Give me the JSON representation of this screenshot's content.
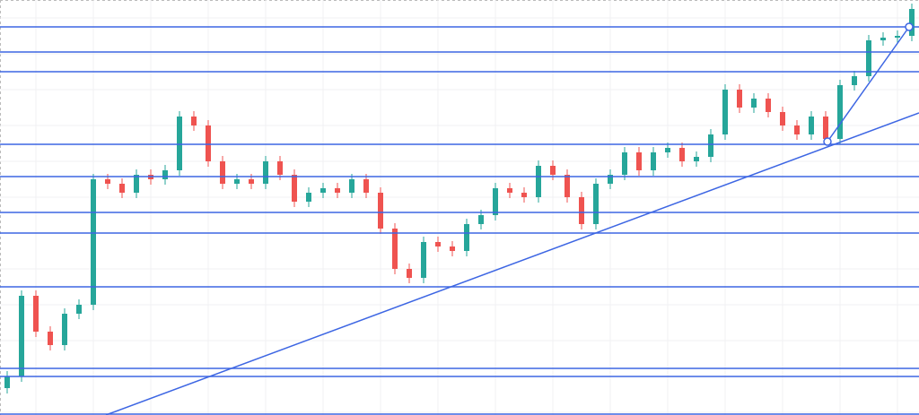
{
  "chart_data": {
    "type": "candlestick",
    "grid": true,
    "xlim": [
      -0.5,
      63.5
    ],
    "ylim": [
      0,
      463
    ],
    "up_color": "#26a69a",
    "down_color": "#ef5350",
    "line_color": "#3d66e3",
    "open": [
      30,
      43,
      133,
      93,
      78,
      113,
      123,
      263,
      258,
      248,
      268,
      263,
      273,
      333,
      323,
      283,
      258,
      263,
      258,
      283,
      268,
      238,
      248,
      253,
      248,
      263,
      248,
      208,
      163,
      153,
      193,
      188,
      183,
      213,
      223,
      253,
      248,
      243,
      278,
      268,
      243,
      213,
      258,
      268,
      293,
      273,
      293,
      298,
      283,
      288,
      313,
      363,
      343,
      353,
      338,
      323,
      313,
      333,
      308,
      368,
      378,
      418,
      421,
      423
    ],
    "high": [
      49,
      139,
      139,
      99,
      119,
      129,
      269,
      269,
      264,
      274,
      274,
      279,
      339,
      339,
      329,
      289,
      269,
      269,
      289,
      289,
      274,
      254,
      259,
      259,
      269,
      269,
      254,
      214,
      169,
      199,
      199,
      194,
      219,
      229,
      259,
      259,
      254,
      284,
      284,
      274,
      249,
      264,
      274,
      299,
      299,
      299,
      304,
      304,
      294,
      319,
      369,
      369,
      359,
      359,
      344,
      329,
      339,
      339,
      374,
      384,
      424,
      427,
      429,
      459
    ],
    "low": [
      24,
      37,
      87,
      72,
      72,
      107,
      117,
      252,
      242,
      242,
      257,
      257,
      267,
      317,
      277,
      252,
      252,
      252,
      252,
      262,
      232,
      232,
      242,
      242,
      242,
      242,
      202,
      157,
      147,
      147,
      182,
      177,
      177,
      207,
      217,
      242,
      237,
      237,
      262,
      237,
      207,
      207,
      252,
      262,
      267,
      267,
      287,
      277,
      277,
      282,
      307,
      337,
      337,
      332,
      317,
      307,
      307,
      302,
      302,
      362,
      372,
      412,
      415,
      417
    ],
    "close": [
      43,
      133,
      93,
      78,
      113,
      123,
      263,
      258,
      248,
      268,
      263,
      273,
      333,
      323,
      283,
      258,
      263,
      258,
      283,
      268,
      238,
      248,
      253,
      248,
      263,
      248,
      208,
      163,
      153,
      193,
      188,
      183,
      213,
      223,
      253,
      248,
      243,
      278,
      268,
      243,
      213,
      258,
      268,
      293,
      273,
      293,
      298,
      283,
      288,
      313,
      363,
      343,
      353,
      338,
      323,
      313,
      333,
      308,
      368,
      378,
      418,
      421,
      423,
      453
    ],
    "levels": [
      433,
      405,
      383,
      302,
      266,
      226,
      203,
      143,
      52,
      43,
      1
    ],
    "trendlines": [
      {
        "x": [
          6.875,
          63.5
        ],
        "y": [
          0,
          337
        ],
        "handles": false
      },
      {
        "x": [
          57.125,
          62.8125
        ],
        "y": [
          305,
          433
        ],
        "handles": true
      }
    ]
  }
}
